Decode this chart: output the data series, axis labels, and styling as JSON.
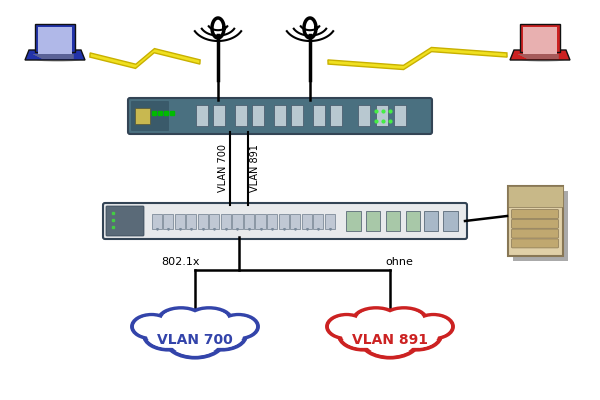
{
  "background_color": "#ffffff",
  "figsize": [
    6.0,
    4.0
  ],
  "dpi": 100,
  "laptop_blue_color": "#2233aa",
  "laptop_red_color": "#cc2222",
  "lightning_color": "#f0e020",
  "lightning_edge": "#c8b000",
  "router_color": "#4a7080",
  "router_edge": "#334455",
  "switch_body": "#e8eaec",
  "switch_left": "#5a6a78",
  "switch_edge": "#334455",
  "cloud_blue": "#3344aa",
  "cloud_red": "#cc2222",
  "line_color": "#000000",
  "text_color": "#000000",
  "vlan700_text": "VLAN 700",
  "vlan891_text": "VLAN 891",
  "label_802": "802.1x",
  "label_ohne": "ohne"
}
